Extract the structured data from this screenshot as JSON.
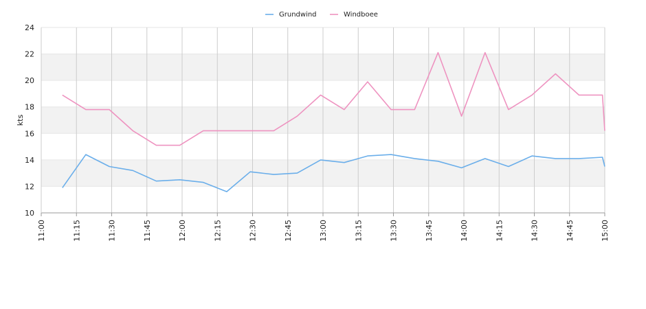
{
  "chart_data": {
    "type": "line",
    "title": "",
    "xlabel": "",
    "ylabel": "kts",
    "ylim": [
      10,
      24
    ],
    "yticks": [
      "10",
      "12",
      "14",
      "16",
      "18",
      "20",
      "22",
      "24"
    ],
    "xlim": [
      "11:00",
      "15:00"
    ],
    "xticks": [
      "11:00",
      "11:15",
      "11:30",
      "11:45",
      "12:00",
      "12:15",
      "12:30",
      "12:45",
      "13:00",
      "13:15",
      "13:30",
      "13:45",
      "14:00",
      "14:15",
      "14:30",
      "14:45",
      "15:00"
    ],
    "grid": true,
    "banded_background": true,
    "legend_position": "top-center",
    "series": [
      {
        "name": "Grundwind",
        "color": "#6aaeea",
        "x": [
          "11:09",
          "11:19",
          "11:29",
          "11:39",
          "11:49",
          "11:59",
          "12:09",
          "12:19",
          "12:29",
          "12:39",
          "12:49",
          "12:59",
          "13:09",
          "13:19",
          "13:29",
          "13:39",
          "13:49",
          "13:59",
          "14:09",
          "14:19",
          "14:29",
          "14:39",
          "14:49",
          "14:59",
          "15:00"
        ],
        "values": [
          11.9,
          14.4,
          13.5,
          13.2,
          12.4,
          12.5,
          12.3,
          11.6,
          13.1,
          12.9,
          13.0,
          14.0,
          13.8,
          14.3,
          14.4,
          14.1,
          13.9,
          13.4,
          14.1,
          13.5,
          14.3,
          14.1,
          14.1,
          14.2,
          13.5
        ]
      },
      {
        "name": "Windboee",
        "color": "#ee93c0",
        "x": [
          "11:09",
          "11:19",
          "11:29",
          "11:39",
          "11:49",
          "11:59",
          "12:09",
          "12:19",
          "12:29",
          "12:39",
          "12:49",
          "12:59",
          "13:09",
          "13:19",
          "13:29",
          "13:39",
          "13:49",
          "13:59",
          "14:09",
          "14:19",
          "14:29",
          "14:39",
          "14:49",
          "14:59",
          "15:00"
        ],
        "values": [
          18.9,
          17.8,
          17.8,
          16.2,
          15.1,
          15.1,
          16.2,
          16.2,
          16.2,
          16.2,
          17.3,
          18.9,
          17.8,
          19.9,
          17.8,
          17.8,
          22.1,
          17.3,
          22.1,
          17.8,
          18.9,
          20.5,
          18.9,
          18.9,
          16.2
        ]
      }
    ]
  }
}
